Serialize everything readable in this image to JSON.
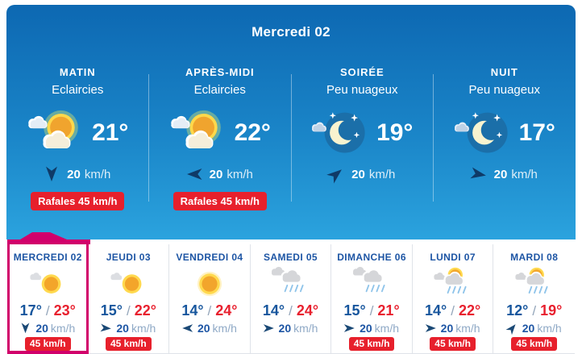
{
  "colors": {
    "panel_gradient_top": "#0d68b2",
    "panel_gradient_bottom": "#2ba3de",
    "accent_magenta": "#d1006b",
    "alert_red": "#e7202c",
    "day_label_blue": "#1d55a4",
    "temp_min_blue": "#17569d",
    "temp_max_red": "#e8202e",
    "muted_unit_blue": "#8fa9c6"
  },
  "header": {
    "title": "Mercredi 02"
  },
  "labels": {
    "temp_separator": "/"
  },
  "today": {
    "periods": [
      {
        "name": "MATIN",
        "condition": "Eclaircies",
        "icon": "sun-clouds",
        "temp": "21°",
        "wind": {
          "speed": "20",
          "unit": "km/h",
          "direction_deg": 180
        },
        "gust_label": "Rafales 45 km/h"
      },
      {
        "name": "APRÈS-MIDI",
        "condition": "Eclaircies",
        "icon": "sun-clouds",
        "temp": "22°",
        "wind": {
          "speed": "20",
          "unit": "km/h",
          "direction_deg": 270
        },
        "gust_label": "Rafales 45 km/h"
      },
      {
        "name": "SOIRÉE",
        "condition": "Peu nuageux",
        "icon": "moon-stars",
        "temp": "19°",
        "wind": {
          "speed": "20",
          "unit": "km/h",
          "direction_deg": 50
        }
      },
      {
        "name": "NUIT",
        "condition": "Peu nuageux",
        "icon": "moon-stars",
        "temp": "17°",
        "wind": {
          "speed": "20",
          "unit": "km/h",
          "direction_deg": 100
        }
      }
    ]
  },
  "week": {
    "days": [
      {
        "label": "MERCREDI 02",
        "icon": "sun-small-cloud",
        "temp_min": "17°",
        "temp_max": "23°",
        "wind": {
          "speed": "20",
          "unit": "km/h",
          "direction_deg": 180
        },
        "gust_label": "45 km/h",
        "selected": true
      },
      {
        "label": "JEUDI 03",
        "icon": "sun-small-cloud",
        "temp_min": "15°",
        "temp_max": "22°",
        "wind": {
          "speed": "20",
          "unit": "km/h",
          "direction_deg": 95
        },
        "gust_label": "45 km/h",
        "selected": false
      },
      {
        "label": "VENDREDI 04",
        "icon": "sun",
        "temp_min": "14°",
        "temp_max": "24°",
        "wind": {
          "speed": "20",
          "unit": "km/h",
          "direction_deg": 270
        },
        "selected": false
      },
      {
        "label": "SAMEDI 05",
        "icon": "clouds-rain",
        "temp_min": "14°",
        "temp_max": "24°",
        "wind": {
          "speed": "20",
          "unit": "km/h",
          "direction_deg": 90
        },
        "selected": false
      },
      {
        "label": "DIMANCHE 06",
        "icon": "clouds-rain",
        "temp_min": "15°",
        "temp_max": "21°",
        "wind": {
          "speed": "20",
          "unit": "km/h",
          "direction_deg": 90
        },
        "gust_label": "45 km/h",
        "selected": false
      },
      {
        "label": "LUNDI 07",
        "icon": "sun-cloud-rain",
        "temp_min": "14°",
        "temp_max": "22°",
        "wind": {
          "speed": "20",
          "unit": "km/h",
          "direction_deg": 90
        },
        "gust_label": "45 km/h",
        "selected": false
      },
      {
        "label": "MARDI 08",
        "icon": "sun-cloud-rain",
        "temp_min": "12°",
        "temp_max": "19°",
        "wind": {
          "speed": "20",
          "unit": "km/h",
          "direction_deg": 40
        },
        "gust_label": "45 km/h",
        "selected": false
      }
    ]
  }
}
